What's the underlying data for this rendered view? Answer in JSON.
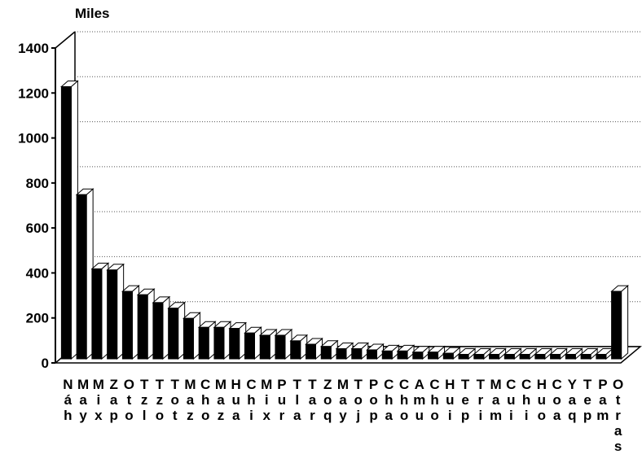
{
  "chart_data": {
    "type": "bar3d",
    "y_label": "Miles",
    "categories": [
      "Náh",
      "May",
      "Mix",
      "Zap",
      "Oto",
      "Tzl",
      "Tzo",
      "Tot",
      "Maz",
      "Cho",
      "Maz",
      "Hua",
      "Chi",
      "Mix",
      "Pur",
      "Tla",
      "Tar",
      "Zoq",
      "May",
      "Toj",
      "Pop",
      "Cha",
      "Cho",
      "Amu",
      "Cho",
      "Hui",
      "Tep",
      "Tri",
      "Mam",
      "Cui",
      "Chi",
      "Huo",
      "Coa",
      "Yaq",
      "Tep",
      "Pam",
      "Otras"
    ],
    "values": [
      1210,
      730,
      400,
      395,
      300,
      285,
      250,
      225,
      180,
      140,
      140,
      135,
      115,
      105,
      105,
      80,
      65,
      55,
      45,
      45,
      40,
      35,
      35,
      30,
      30,
      25,
      20,
      20,
      20,
      20,
      20,
      20,
      20,
      20,
      20,
      20,
      300
    ],
    "color": "#000000",
    "ylim": [
      0,
      1400
    ],
    "yticks": [
      0,
      200,
      400,
      600,
      800,
      1000,
      1200,
      1400
    ],
    "grid": true
  }
}
